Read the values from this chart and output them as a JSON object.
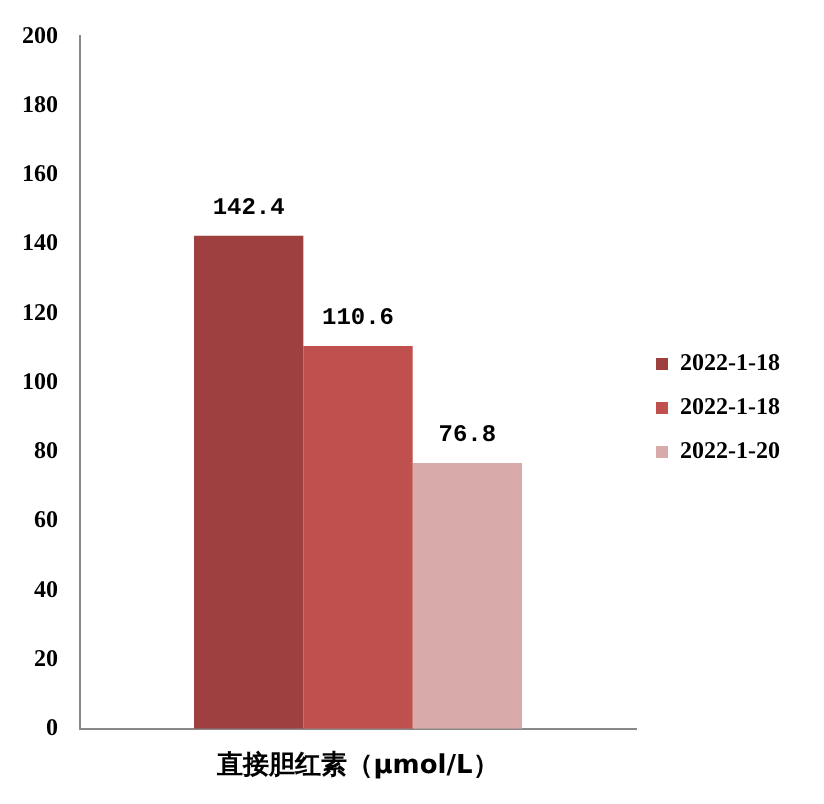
{
  "chart_data": {
    "type": "bar",
    "categories": [
      "直接胆红素（μmol/L）"
    ],
    "series": [
      {
        "name": "2022-1-18",
        "color": "#9e403f",
        "values": [
          142.4
        ]
      },
      {
        "name": "2022-1-18",
        "color": "#c0504d",
        "values": [
          110.6
        ]
      },
      {
        "name": "2022-1-20",
        "color": "#d9aaaa",
        "values": [
          76.8
        ]
      }
    ],
    "ylim": [
      0,
      200
    ],
    "yticks": [
      0,
      20,
      40,
      60,
      80,
      100,
      120,
      140,
      160,
      180,
      200
    ],
    "grid": false,
    "legend": "right",
    "data_labels": true
  }
}
